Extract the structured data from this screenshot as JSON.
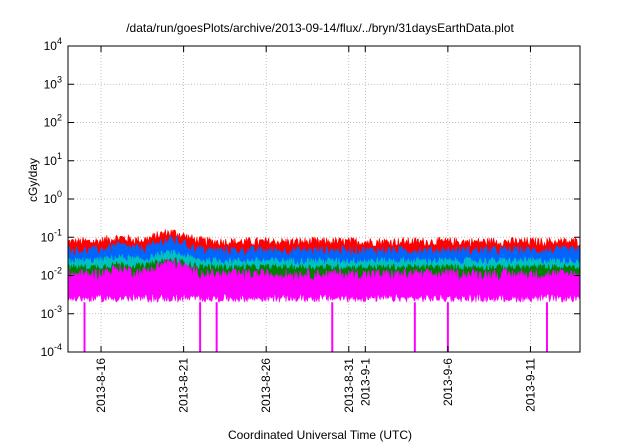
{
  "chart_data": {
    "type": "line",
    "title": "/data/run/goesPlots/archive/2013-09-14/flux/../bryn/31daysEarthData.plot",
    "xlabel": "Coordinated Universal Time (UTC)",
    "ylabel": "cGy/day",
    "y_scale": "log",
    "ylim": [
      0.0001,
      10000
    ],
    "y_ticks": [
      {
        "value": 0.0001,
        "mantissa": "10",
        "exp": "-4"
      },
      {
        "value": 0.001,
        "mantissa": "10",
        "exp": "-3"
      },
      {
        "value": 0.01,
        "mantissa": "10",
        "exp": "-2"
      },
      {
        "value": 0.1,
        "mantissa": "10",
        "exp": "-1"
      },
      {
        "value": 1,
        "mantissa": "10",
        "exp": "0"
      },
      {
        "value": 10,
        "mantissa": "10",
        "exp": "1"
      },
      {
        "value": 100,
        "mantissa": "10",
        "exp": "2"
      },
      {
        "value": 1000,
        "mantissa": "10",
        "exp": "3"
      },
      {
        "value": 10000,
        "mantissa": "10",
        "exp": "4"
      }
    ],
    "xlim": [
      "2013-08-14",
      "2013-09-14"
    ],
    "x_ticks": [
      {
        "date": "2013-08-16",
        "label": "2013-8-16"
      },
      {
        "date": "2013-08-21",
        "label": "2013-8-21"
      },
      {
        "date": "2013-08-26",
        "label": "2013-8-26"
      },
      {
        "date": "2013-08-31",
        "label": "2013-8-31"
      },
      {
        "date": "2013-09-01",
        "label": "2013-9-1"
      },
      {
        "date": "2013-09-06",
        "label": "2013-9-6"
      },
      {
        "date": "2013-09-11",
        "label": "2013-9-11"
      }
    ],
    "grid": true,
    "legend": "none",
    "series": [
      {
        "color": "#ff0000",
        "values_range": [
          0.02,
          0.1
        ]
      },
      {
        "color": "#0066ff",
        "values_range": [
          0.01,
          0.06
        ]
      },
      {
        "color": "#00c0c0",
        "values_range": [
          0.008,
          0.03
        ]
      },
      {
        "color": "#008000",
        "values_range": [
          0.006,
          0.02
        ]
      },
      {
        "color": "#ff00ff",
        "values_range": [
          0.002,
          0.015
        ]
      }
    ],
    "dropouts": [
      "2013-08-15",
      "2013-08-22",
      "2013-08-23",
      "2013-08-30",
      "2013-09-04",
      "2013-09-06",
      "2013-09-12"
    ]
  }
}
